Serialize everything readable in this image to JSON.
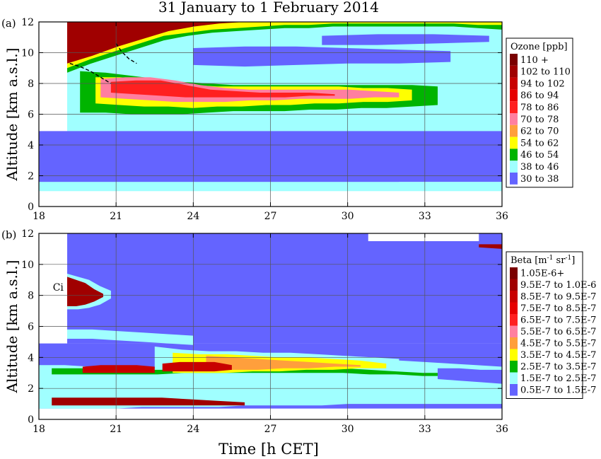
{
  "title": "31 January to 1 February 2014",
  "xlabel": "Time [h CET]",
  "chart_data": [
    {
      "type": "heatmap",
      "panel_label": "(a)",
      "ylabel": "Altitude [km a.s.l.]",
      "xlim": [
        18,
        36
      ],
      "ylim": [
        0,
        12
      ],
      "xticks": [
        "18",
        "21",
        "24",
        "27",
        "30",
        "33",
        "36"
      ],
      "yticks": [
        "0",
        "2",
        "4",
        "6",
        "8",
        "10",
        "12"
      ],
      "grid": true,
      "legend_position": "right",
      "legend": {
        "title_main": "Ozone",
        "title_unit": "[ppb]",
        "entries": [
          {
            "label": "110 +",
            "color": "#7a0000"
          },
          {
            "label": "102 to 110",
            "color": "#a00000"
          },
          {
            "label": "94 to 102",
            "color": "#c80000"
          },
          {
            "label": "86 to  94",
            "color": "#e60000"
          },
          {
            "label": "78 to  86",
            "color": "#ff2020"
          },
          {
            "label": "70 to  78",
            "color": "#ff7fa0"
          },
          {
            "label": "62 to  70",
            "color": "#ff9f3c"
          },
          {
            "label": "54 to  62",
            "color": "#ffff00"
          },
          {
            "label": "46 to  54",
            "color": "#00b400"
          },
          {
            "label": "38 to  46",
            "color": "#a0ffff"
          },
          {
            "label": "30 to  38",
            "color": "#6464ff"
          }
        ]
      },
      "bands": [
        {
          "level": 9,
          "x": [
            19.1,
            36
          ],
          "top": [
            12,
            12,
            12,
            12,
            12,
            12,
            12,
            12,
            12,
            12,
            12,
            12,
            12,
            12,
            12,
            12,
            12,
            12,
            12
          ],
          "bottom": [
            4.9,
            4.9,
            4.9,
            5.0,
            5.2,
            5.3,
            5.2,
            5.1,
            5.0,
            4.9,
            4.9,
            4.8,
            4.8,
            4.8,
            4.8,
            4.8,
            4.8,
            4.9,
            5.0
          ]
        },
        {
          "level": 8,
          "x": [
            19.1,
            36
          ],
          "top": [
            12,
            12,
            12,
            12,
            12,
            12,
            12,
            12,
            12,
            12,
            12,
            12,
            12,
            12,
            12,
            12,
            12,
            12,
            12
          ],
          "bottom": [
            8.7,
            9.3,
            9.8,
            10.3,
            10.8,
            11.1,
            11.3,
            11.4,
            11.5,
            11.6,
            11.6,
            11.7,
            11.7,
            11.7,
            11.7,
            11.7,
            11.7,
            11.6,
            11.5
          ]
        },
        {
          "level": 7,
          "x": [
            19.1,
            36
          ],
          "top": [
            12,
            12,
            12,
            12,
            12,
            12,
            12,
            12,
            12,
            12,
            12,
            12,
            12,
            12,
            12,
            12,
            12,
            12,
            12
          ],
          "bottom": [
            9.0,
            9.6,
            10.1,
            10.6,
            11.1,
            11.3,
            11.5,
            11.6,
            11.7,
            11.8,
            11.8,
            11.9,
            11.9,
            11.9,
            11.9,
            11.9,
            11.9,
            11.8,
            11.8
          ]
        },
        {
          "level": 1,
          "x": [
            19.1,
            26
          ],
          "top": [
            12,
            12,
            12,
            12,
            12,
            12,
            12,
            12
          ],
          "bottom": [
            9.3,
            9.8,
            10.4,
            10.9,
            11.4,
            11.7,
            11.9,
            12
          ]
        },
        {
          "level": 8,
          "x": [
            19.6,
            33.5
          ],
          "top": [
            8.8,
            8.7,
            8.5,
            8.3,
            8.1,
            8.0,
            7.9,
            7.9,
            7.9,
            7.9,
            7.9,
            7.9,
            7.9,
            7.9,
            7.8
          ],
          "bottom": [
            6.1,
            6.1,
            6.0,
            6.0,
            6.0,
            6.1,
            6.2,
            6.2,
            6.2,
            6.3,
            6.3,
            6.4,
            6.4,
            6.5,
            6.6
          ]
        },
        {
          "level": 7,
          "x": [
            20.2,
            32.5
          ],
          "top": [
            8.4,
            8.4,
            8.3,
            8.1,
            7.9,
            7.8,
            7.8,
            7.8,
            7.8,
            7.8,
            7.8,
            7.7,
            7.7,
            7.6
          ],
          "bottom": [
            6.7,
            6.6,
            6.5,
            6.5,
            6.4,
            6.5,
            6.5,
            6.6,
            6.6,
            6.7,
            6.7,
            6.8,
            6.8,
            6.9
          ]
        },
        {
          "level": 5,
          "x": [
            20.4,
            32
          ],
          "top": [
            8.3,
            8.4,
            8.4,
            8.2,
            7.9,
            7.7,
            7.6,
            7.6,
            7.6,
            7.6,
            7.6,
            7.5,
            7.4
          ],
          "bottom": [
            7.1,
            7.0,
            6.9,
            6.8,
            6.8,
            6.8,
            6.9,
            6.9,
            7.0,
            7.0,
            7.0,
            7.1,
            7.1
          ]
        },
        {
          "level": 4,
          "x": [
            20.8,
            29.5
          ],
          "top": [
            8.1,
            8.2,
            8.2,
            7.9,
            7.6,
            7.5,
            7.4,
            7.4,
            7.4,
            7.3
          ],
          "bottom": [
            7.4,
            7.3,
            7.2,
            7.1,
            7.1,
            7.1,
            7.1,
            7.1,
            7.2,
            7.2
          ]
        },
        {
          "level": 10,
          "x": [
            0,
            36
          ],
          "top": [
            4.9,
            4.9,
            4.9,
            4.9,
            4.9,
            4.9,
            4.9
          ],
          "bottom": [
            1.6,
            1.6,
            1.6,
            1.6,
            1.6,
            1.6,
            1.6
          ]
        },
        {
          "level": 10,
          "x": [
            24,
            34
          ],
          "top": [
            10.3,
            10.4,
            10.4,
            10.3,
            10.2,
            10.1
          ],
          "bottom": [
            9.2,
            9.1,
            9.2,
            9.3,
            9.3,
            9.4
          ]
        },
        {
          "level": 10,
          "x": [
            29,
            35.5
          ],
          "top": [
            11.1,
            11.2,
            11.2,
            11.1
          ],
          "bottom": [
            10.5,
            10.5,
            10.6,
            10.7
          ]
        },
        {
          "level": 10,
          "x": [
            0,
            32
          ],
          "top": [
            1.6,
            1.6,
            1.6,
            1.6
          ],
          "bottom": [
            1.1,
            1.1,
            1.1,
            1.1
          ]
        },
        {
          "level": 9,
          "x": [
            0,
            36
          ],
          "top": [
            1.6,
            1.6,
            1.6
          ],
          "bottom": [
            1.0,
            1.0,
            1.0
          ]
        }
      ],
      "dashed_line": {
        "x": [
          19.2,
          19.6,
          20.0,
          20.4,
          20.8
        ],
        "y": [
          9.3,
          9.1,
          8.8,
          8.4,
          8.0
        ]
      },
      "dashed_line2": {
        "x": [
          21.0,
          21.2,
          21.5,
          21.8
        ],
        "y": [
          10.6,
          10.1,
          9.6,
          9.3
        ]
      }
    },
    {
      "type": "heatmap",
      "panel_label": "(b)",
      "ylabel": "Altitude [km a.s.l.]",
      "xlim": [
        18,
        36
      ],
      "ylim": [
        0,
        12
      ],
      "xticks": [
        "18",
        "21",
        "24",
        "27",
        "30",
        "33",
        "36"
      ],
      "yticks": [
        "0",
        "2",
        "4",
        "6",
        "8",
        "10",
        "12"
      ],
      "grid": true,
      "legend_position": "right",
      "annotation": "Ci",
      "legend": {
        "title_main": "Beta",
        "title_unit": "[m",
        "title_exp1": "-1",
        "title_mid": " sr",
        "title_exp2": "-1",
        "title_end": "]",
        "entries": [
          {
            "label": "1.05E-6+",
            "color": "#7a0000"
          },
          {
            "label": "9.5E-7 to 1.0E-6",
            "color": "#a00000"
          },
          {
            "label": "8.5E-7 to 9.5E-7",
            "color": "#c80000"
          },
          {
            "label": "7.5E-7 to 8.5E-7",
            "color": "#e60000"
          },
          {
            "label": "6.5E-7 to 7.5E-7",
            "color": "#ff2020"
          },
          {
            "label": "5.5E-7 to 6.5E-7",
            "color": "#ff7fa0"
          },
          {
            "label": "4.5E-7 to 5.5E-7",
            "color": "#ff9f3c"
          },
          {
            "label": "3.5E-7 to 4.5E-7",
            "color": "#ffff00"
          },
          {
            "label": "2.5E-7 to 3.5E-7",
            "color": "#00b400"
          },
          {
            "label": "1.5E-7 to 2.5E-7",
            "color": "#a0ffff"
          },
          {
            "label": "0.5E-7 to 1.5E-7",
            "color": "#6464ff"
          }
        ]
      },
      "bands": [
        {
          "level": 9,
          "x": [
            18,
            36
          ],
          "top": [
            3.5,
            3.5,
            3.4,
            3.4,
            3.3,
            3.3,
            3.4,
            3.5,
            3.7,
            3.8,
            3.9,
            3.9,
            3.9,
            3.9,
            3.8,
            3.7,
            3.6,
            3.5,
            3.4
          ],
          "bottom": [
            0.7,
            0.7,
            0.7,
            0.7,
            0.8,
            0.8,
            0.8,
            0.8,
            0.9,
            0.9,
            0.9,
            0.9,
            1.0,
            1.0,
            1.0,
            1.0,
            1.0,
            1.0,
            1.0
          ]
        },
        {
          "level": 9,
          "x": [
            19.1,
            24
          ],
          "top": [
            5.8,
            5.8,
            5.7,
            5.6,
            5.5,
            5.4
          ],
          "bottom": [
            5.2,
            5.2,
            5.1,
            5.0,
            4.9,
            4.8
          ]
        },
        {
          "level": 9,
          "x": [
            22.5,
            32
          ],
          "top": [
            4.7,
            4.5,
            4.4,
            4.4,
            4.3,
            4.3,
            4.2,
            4.1,
            4.0,
            3.9
          ],
          "bottom": [
            2.8,
            2.8,
            2.8,
            2.8,
            2.9,
            2.9,
            3.0,
            3.0,
            3.0,
            3.1
          ]
        },
        {
          "level": 8,
          "x": [
            18.5,
            36
          ],
          "top": [
            3.3,
            3.3,
            3.3,
            3.2,
            3.2,
            3.2,
            3.3,
            3.4,
            3.4,
            3.4,
            3.3,
            3.3,
            3.2,
            3.1,
            3.0,
            3.0,
            2.9,
            2.9
          ],
          "bottom": [
            2.9,
            2.9,
            2.9,
            2.9,
            2.9,
            3.0,
            3.0,
            3.0,
            3.0,
            3.0,
            3.0,
            3.0,
            2.9,
            2.9,
            2.8,
            2.8,
            2.8,
            2.8
          ]
        },
        {
          "level": 7,
          "x": [
            23.2,
            31.5
          ],
          "top": [
            4.3,
            4.2,
            4.2,
            4.1,
            4.0,
            4.0,
            3.9,
            3.8,
            3.6
          ],
          "bottom": [
            3.0,
            3.0,
            3.0,
            3.1,
            3.1,
            3.2,
            3.2,
            3.3,
            3.3
          ]
        },
        {
          "level": 6,
          "x": [
            24.5,
            30.5
          ],
          "top": [
            4.1,
            4.0,
            3.9,
            3.8,
            3.7,
            3.6,
            3.5
          ],
          "bottom": [
            3.1,
            3.2,
            3.2,
            3.3,
            3.3,
            3.4,
            3.4
          ]
        },
        {
          "level": 2,
          "x": [
            19.7,
            22.5
          ],
          "top": [
            3.4,
            3.5,
            3.5,
            3.5,
            3.4
          ],
          "bottom": [
            3.0,
            3.0,
            3.0,
            3.0,
            3.0
          ]
        },
        {
          "level": 2,
          "x": [
            22.8,
            25.5
          ],
          "top": [
            3.6,
            3.7,
            3.7,
            3.7,
            3.5
          ],
          "bottom": [
            3.1,
            3.1,
            3.1,
            3.1,
            3.2
          ]
        },
        {
          "level": 9,
          "x": [
            18,
            24
          ],
          "top": [
            2.3,
            2.2,
            2.2,
            2.1,
            2.1,
            2.0
          ],
          "bottom": [
            1.6,
            1.6,
            1.6,
            1.6,
            1.6,
            1.6
          ]
        },
        {
          "level": 1,
          "x": [
            18.5,
            26
          ],
          "top": [
            1.4,
            1.4,
            1.4,
            1.4,
            1.4,
            1.3,
            1.2,
            1.1
          ],
          "bottom": [
            0.9,
            0.9,
            0.9,
            0.9,
            0.9,
            0.9,
            0.9,
            0.9
          ]
        },
        {
          "level": 9,
          "x": [
            19.1,
            20.8
          ],
          "top": [
            9.4,
            9.2,
            9.0,
            8.6,
            8.3
          ],
          "bottom": [
            7.1,
            7.1,
            7.2,
            7.4,
            7.8
          ]
        },
        {
          "level": 1,
          "x": [
            19.1,
            20.5
          ],
          "top": [
            9.2,
            9.0,
            8.8,
            8.4,
            8.1
          ],
          "bottom": [
            7.3,
            7.3,
            7.4,
            7.6,
            7.9
          ]
        },
        {
          "level": 10,
          "x": [
            33.5,
            36
          ],
          "top": [
            3.3,
            3.3,
            3.2,
            3.2
          ],
          "bottom": [
            2.6,
            2.5,
            2.4,
            2.3
          ]
        }
      ]
    }
  ]
}
